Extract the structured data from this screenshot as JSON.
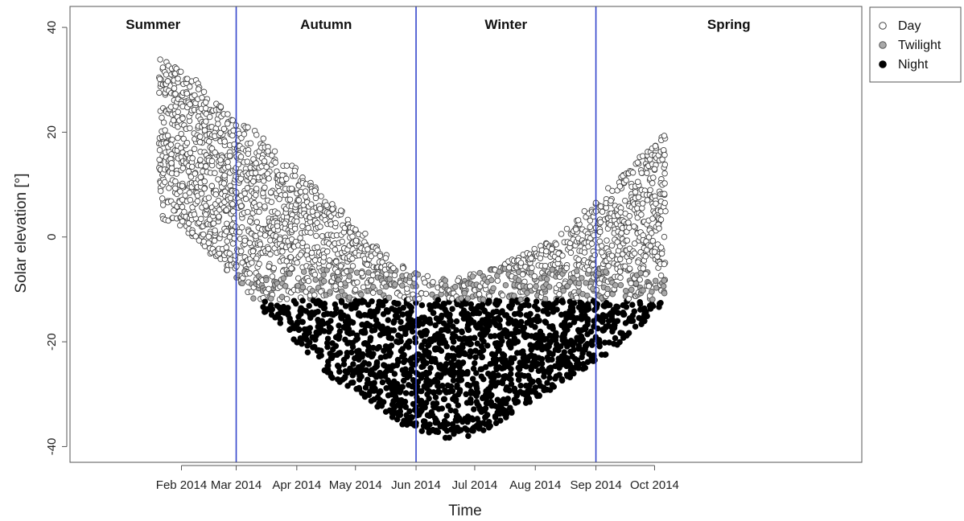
{
  "chart_data": {
    "type": "scatter",
    "title": "",
    "xlabel": "Time",
    "ylabel": "Solar elevation [°]",
    "ylim": [
      -43,
      44
    ],
    "xlim_days": [
      -26,
      379
    ],
    "y_ticks": [
      -40,
      -20,
      0,
      20,
      40
    ],
    "x_ticks": [
      {
        "label": "Feb 2014",
        "date": "2014-02-01"
      },
      {
        "label": "Mar 2014",
        "date": "2014-03-01"
      },
      {
        "label": "Apr 2014",
        "date": "2014-04-01"
      },
      {
        "label": "May 2014",
        "date": "2014-05-01"
      },
      {
        "label": "Jun 2014",
        "date": "2014-06-01"
      },
      {
        "label": "Jul 2014",
        "date": "2014-07-01"
      },
      {
        "label": "Aug 2014",
        "date": "2014-08-01"
      },
      {
        "label": "Sep 2014",
        "date": "2014-09-01"
      },
      {
        "label": "Oct 2014",
        "date": "2014-10-01"
      }
    ],
    "season_boundaries": [
      "2014-03-01",
      "2014-06-01",
      "2014-09-01"
    ],
    "season_boundary_color": "#3344cc",
    "seasons": [
      "Summer",
      "Autumn",
      "Winter",
      "Spring"
    ],
    "grid": false,
    "legend_position": "outside-top-right",
    "twilight_threshold": -12,
    "series": [
      {
        "name": "Day",
        "marker": "open-circle",
        "fill": "#ffffff",
        "stroke": "#444444"
      },
      {
        "name": "Twilight",
        "marker": "gray-circle",
        "fill": "#a9a9a9",
        "stroke": "#555555"
      },
      {
        "name": "Night",
        "marker": "filled-circle",
        "fill": "#000000",
        "stroke": "#000000"
      }
    ],
    "envelope": [
      {
        "date": "2014-01-21",
        "min": 3.5,
        "max": 34
      },
      {
        "date": "2014-02-01",
        "min": 2,
        "max": 32
      },
      {
        "date": "2014-02-15",
        "min": -3,
        "max": 28
      },
      {
        "date": "2014-03-01",
        "min": -8,
        "max": 23
      },
      {
        "date": "2014-03-15",
        "min": -14,
        "max": 19
      },
      {
        "date": "2014-04-01",
        "min": -20,
        "max": 13
      },
      {
        "date": "2014-04-15",
        "min": -26,
        "max": 8
      },
      {
        "date": "2014-05-01",
        "min": -30,
        "max": 3
      },
      {
        "date": "2014-05-15",
        "min": -34,
        "max": -3
      },
      {
        "date": "2014-06-01",
        "min": -37,
        "max": -7
      },
      {
        "date": "2014-06-15",
        "min": -38.5,
        "max": -8
      },
      {
        "date": "2014-07-01",
        "min": -38,
        "max": -7
      },
      {
        "date": "2014-07-15",
        "min": -35,
        "max": -5
      },
      {
        "date": "2014-08-01",
        "min": -31,
        "max": -2
      },
      {
        "date": "2014-08-15",
        "min": -28,
        "max": 1
      },
      {
        "date": "2014-09-01",
        "min": -24,
        "max": 7
      },
      {
        "date": "2014-09-15",
        "min": -20,
        "max": 12
      },
      {
        "date": "2014-10-07",
        "min": -12,
        "max": 20
      }
    ]
  }
}
